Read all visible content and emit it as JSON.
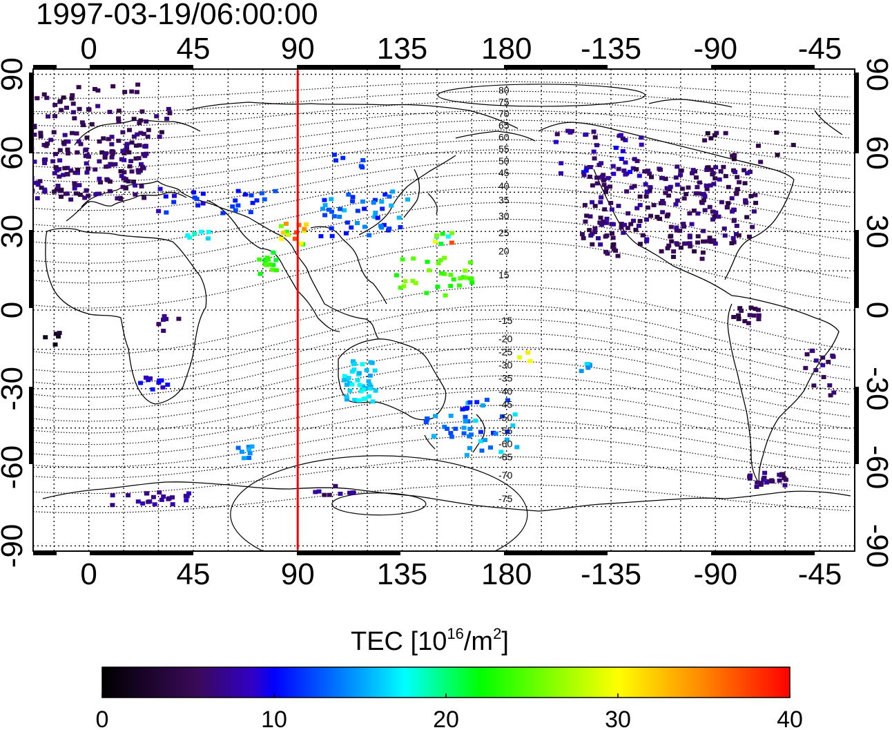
{
  "title": "1997-03-19/06:00:00",
  "map": {
    "lon_labels": [
      "0",
      "45",
      "90",
      "135",
      "180",
      "-135",
      "-90",
      "-45"
    ],
    "lon_values": [
      0,
      45,
      90,
      135,
      180,
      225,
      270,
      315
    ],
    "lat_labels": [
      "90",
      "60",
      "30",
      "0",
      "-30",
      "-60",
      "-90"
    ],
    "lat_values": [
      90,
      60,
      30,
      0,
      -30,
      -60,
      -90
    ],
    "lon_range": [
      -24,
      330
    ],
    "lat_range": [
      -92,
      92
    ],
    "meridian_marker_lon": 90,
    "marker_color": "#ff0000",
    "contour_labels": [
      {
        "text": "80",
        "lat": 84
      },
      {
        "text": "75",
        "lat": 79.5
      },
      {
        "text": "70",
        "lat": 75
      },
      {
        "text": "65",
        "lat": 70.5
      },
      {
        "text": "60",
        "lat": 66
      },
      {
        "text": "55",
        "lat": 61.5
      },
      {
        "text": "50",
        "lat": 57
      },
      {
        "text": "45",
        "lat": 52.5
      },
      {
        "text": "40",
        "lat": 47.5
      },
      {
        "text": "35",
        "lat": 42
      },
      {
        "text": "30",
        "lat": 36
      },
      {
        "text": "25",
        "lat": 29.5
      },
      {
        "text": "20",
        "lat": 22.5
      },
      {
        "text": "15",
        "lat": 13.5
      },
      {
        "text": "-15",
        "lat": -4
      },
      {
        "text": "-20",
        "lat": -11
      },
      {
        "text": "-25",
        "lat": -16
      },
      {
        "text": "-30",
        "lat": -21
      },
      {
        "text": "-35",
        "lat": -26
      },
      {
        "text": "-40",
        "lat": -31
      },
      {
        "text": "-45",
        "lat": -36
      },
      {
        "text": "-50",
        "lat": -41
      },
      {
        "text": "-55",
        "lat": -46
      },
      {
        "text": "-60",
        "lat": -51
      },
      {
        "text": "-65",
        "lat": -56
      },
      {
        "text": "-70",
        "lat": -63
      },
      {
        "text": "-75",
        "lat": -72
      }
    ]
  },
  "colorbar": {
    "label_main": "TEC  [10",
    "label_exp": "16",
    "label_mid": "/m",
    "label_exp2": "2",
    "label_end": "]",
    "ticks": [
      "0",
      "10",
      "20",
      "30",
      "40"
    ],
    "tick_values": [
      0,
      10,
      20,
      30,
      40
    ],
    "range": [
      0,
      40
    ],
    "stops": [
      "#000000",
      "#3a0a5a",
      "#3000c8",
      "#0000ff",
      "#00ffff",
      "#00ff00",
      "#ffff00",
      "#ff0000"
    ]
  },
  "tec_clusters": [
    {
      "lon": 0,
      "lat": 55,
      "w": 50,
      "h": 26,
      "n": 160,
      "tec": [
        4,
        8
      ]
    },
    {
      "lon": 5,
      "lat": 72,
      "w": 60,
      "h": 12,
      "n": 40,
      "tec": [
        4,
        7
      ]
    },
    {
      "lon": -15,
      "lat": 80,
      "w": 20,
      "h": 5,
      "n": 10,
      "tec": [
        3,
        6
      ]
    },
    {
      "lon": 8,
      "lat": 85,
      "w": 30,
      "h": 4,
      "n": 8,
      "tec": [
        4,
        6
      ]
    },
    {
      "lon": 40,
      "lat": 42,
      "w": 24,
      "h": 10,
      "n": 12,
      "tec": [
        8,
        12
      ]
    },
    {
      "lon": 70,
      "lat": 42,
      "w": 25,
      "h": 10,
      "n": 14,
      "tec": [
        10,
        13
      ]
    },
    {
      "lon": 112,
      "lat": 57,
      "w": 14,
      "h": 6,
      "n": 6,
      "tec": [
        11,
        13
      ]
    },
    {
      "lon": 120,
      "lat": 37,
      "w": 40,
      "h": 18,
      "n": 45,
      "tec": [
        10,
        16
      ]
    },
    {
      "lon": 88,
      "lat": 29,
      "w": 12,
      "h": 8,
      "n": 14,
      "tec": [
        22,
        38
      ]
    },
    {
      "lon": 77,
      "lat": 18,
      "w": 8,
      "h": 9,
      "n": 14,
      "tec": [
        21,
        25
      ]
    },
    {
      "lon": 150,
      "lat": 13,
      "w": 35,
      "h": 15,
      "n": 30,
      "tec": [
        22,
        27
      ]
    },
    {
      "lon": 152,
      "lat": 27,
      "w": 10,
      "h": 6,
      "n": 8,
      "tec": [
        16,
        38
      ]
    },
    {
      "lon": 48,
      "lat": 28,
      "w": 12,
      "h": 5,
      "n": 6,
      "tec": [
        16,
        19
      ]
    },
    {
      "lon": 117,
      "lat": -27,
      "w": 14,
      "h": 16,
      "n": 40,
      "tec": [
        15,
        18
      ]
    },
    {
      "lon": 155,
      "lat": -44,
      "w": 20,
      "h": 9,
      "n": 18,
      "tec": [
        12,
        16
      ]
    },
    {
      "lon": 172,
      "lat": -45,
      "w": 25,
      "h": 22,
      "n": 30,
      "tec": [
        10,
        17
      ]
    },
    {
      "lon": 67,
      "lat": -54,
      "w": 10,
      "h": 5,
      "n": 8,
      "tec": [
        13,
        16
      ]
    },
    {
      "lon": 28,
      "lat": -29,
      "w": 12,
      "h": 8,
      "n": 10,
      "tec": [
        8,
        11
      ]
    },
    {
      "lon": 35,
      "lat": -5,
      "w": 12,
      "h": 6,
      "n": 6,
      "tec": [
        5,
        8
      ]
    },
    {
      "lon": 30,
      "lat": -72,
      "w": 40,
      "h": 5,
      "n": 22,
      "tec": [
        6,
        9
      ]
    },
    {
      "lon": 105,
      "lat": -69,
      "w": 20,
      "h": 4,
      "n": 9,
      "tec": [
        5,
        8
      ]
    },
    {
      "lon": 250,
      "lat": 40,
      "w": 75,
      "h": 30,
      "n": 220,
      "tec": [
        4,
        8
      ]
    },
    {
      "lon": 220,
      "lat": 60,
      "w": 40,
      "h": 18,
      "n": 40,
      "tec": [
        5,
        10
      ]
    },
    {
      "lon": 285,
      "lat": 62,
      "w": 40,
      "h": 12,
      "n": 14,
      "tec": [
        3,
        6
      ]
    },
    {
      "lon": 255,
      "lat": 22,
      "w": 20,
      "h": 8,
      "n": 12,
      "tec": [
        4,
        6
      ]
    },
    {
      "lon": 225,
      "lat": 23,
      "w": 6,
      "h": 6,
      "n": 6,
      "tec": [
        4,
        6
      ]
    },
    {
      "lon": 283,
      "lat": -2,
      "w": 12,
      "h": 6,
      "n": 14,
      "tec": [
        3,
        6
      ]
    },
    {
      "lon": 315,
      "lat": -25,
      "w": 15,
      "h": 20,
      "n": 16,
      "tec": [
        5,
        8
      ]
    },
    {
      "lon": 292,
      "lat": -65,
      "w": 18,
      "h": 6,
      "n": 22,
      "tec": [
        5,
        8
      ]
    },
    {
      "lon": 213,
      "lat": -22,
      "w": 6,
      "h": 4,
      "n": 5,
      "tec": [
        14,
        17
      ]
    },
    {
      "lon": 188,
      "lat": -18,
      "w": 6,
      "h": 4,
      "n": 3,
      "tec": [
        28,
        31
      ]
    },
    {
      "lon": -15,
      "lat": -11,
      "w": 10,
      "h": 5,
      "n": 5,
      "tec": [
        1,
        4
      ]
    }
  ]
}
